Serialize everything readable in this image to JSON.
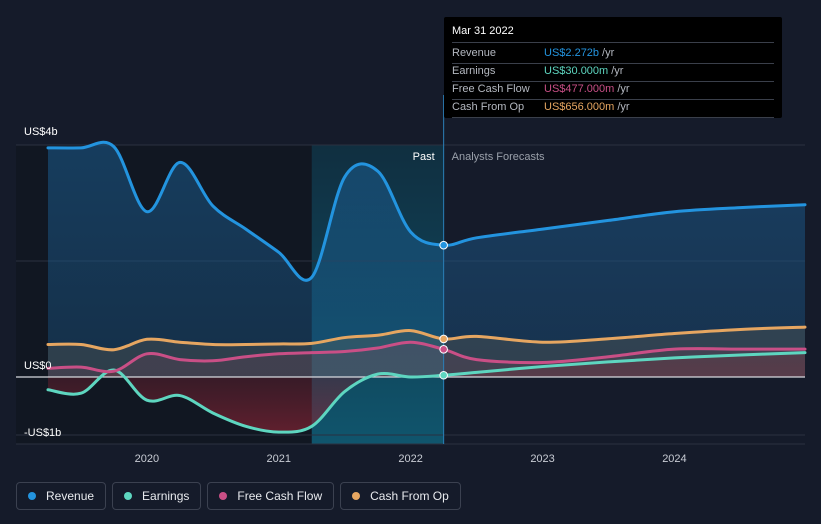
{
  "colors": {
    "revenue": "#2394df",
    "earnings": "#5ed6c0",
    "free_cash_flow": "#c94f86",
    "cash_from_op": "#e6a661",
    "background": "#151b2a"
  },
  "tooltip": {
    "date": "Mar 31 2022",
    "rows": [
      {
        "label": "Revenue",
        "value": "US$2.272b",
        "unit": "/yr",
        "color": "#2394df"
      },
      {
        "label": "Earnings",
        "value": "US$30.000m",
        "unit": "/yr",
        "color": "#5ed6c0"
      },
      {
        "label": "Free Cash Flow",
        "value": "US$477.000m",
        "unit": "/yr",
        "color": "#c94f86"
      },
      {
        "label": "Cash From Op",
        "value": "US$656.000m",
        "unit": "/yr",
        "color": "#e6a661"
      }
    ]
  },
  "legend": [
    {
      "label": "Revenue",
      "color": "#2394df"
    },
    {
      "label": "Earnings",
      "color": "#5ed6c0"
    },
    {
      "label": "Free Cash Flow",
      "color": "#c94f86"
    },
    {
      "label": "Cash From Op",
      "color": "#e6a661"
    }
  ],
  "chart_data": {
    "type": "line",
    "title": "",
    "xlabel": "",
    "ylabel": "",
    "units": "USD billions (annual)",
    "ylim": [
      -1.2,
      4.0
    ],
    "y_tick_labels": [
      {
        "value": 4.0,
        "label": "US$4b"
      },
      {
        "value": 0.0,
        "label": "US$0"
      },
      {
        "value": -1.0,
        "label": "-US$1b"
      }
    ],
    "x_ticks": [
      2020,
      2021,
      2022,
      2023,
      2024
    ],
    "xlim": [
      2019.25,
      2024.99
    ],
    "past_label": "Past",
    "forecast_label": "Analysts Forecasts",
    "past_boundary_x": 2022.25,
    "highlight_start_x": 2021.25,
    "series": [
      {
        "name": "Revenue",
        "key": "revenue",
        "x": [
          2019.25,
          2019.5,
          2019.75,
          2020.0,
          2020.25,
          2020.5,
          2020.75,
          2021.0,
          2021.25,
          2021.5,
          2021.75,
          2022.0,
          2022.25,
          2022.5,
          2023.0,
          2023.5,
          2024.0,
          2024.5,
          2024.99
        ],
        "values": [
          3.95,
          3.95,
          3.97,
          2.85,
          3.7,
          2.95,
          2.55,
          2.15,
          1.72,
          3.45,
          3.55,
          2.5,
          2.272,
          2.4,
          2.55,
          2.7,
          2.85,
          2.92,
          2.97
        ]
      },
      {
        "name": "Earnings",
        "key": "earnings",
        "x": [
          2019.25,
          2019.5,
          2019.75,
          2020.0,
          2020.25,
          2020.5,
          2020.75,
          2021.0,
          2021.25,
          2021.5,
          2021.75,
          2022.0,
          2022.25,
          2022.5,
          2023.0,
          2023.5,
          2024.0,
          2024.5,
          2024.99
        ],
        "values": [
          -0.22,
          -0.28,
          0.12,
          -0.4,
          -0.32,
          -0.62,
          -0.85,
          -0.95,
          -0.85,
          -0.25,
          0.05,
          0.0,
          0.03,
          0.08,
          0.18,
          0.26,
          0.33,
          0.38,
          0.42
        ]
      },
      {
        "name": "Free Cash Flow",
        "key": "free_cash_flow",
        "x": [
          2019.25,
          2019.5,
          2019.75,
          2020.0,
          2020.25,
          2020.5,
          2020.75,
          2021.0,
          2021.25,
          2021.5,
          2021.75,
          2022.0,
          2022.25,
          2022.5,
          2023.0,
          2023.5,
          2024.0,
          2024.5,
          2024.99
        ],
        "values": [
          0.15,
          0.17,
          0.1,
          0.4,
          0.3,
          0.28,
          0.35,
          0.4,
          0.42,
          0.44,
          0.5,
          0.6,
          0.477,
          0.3,
          0.25,
          0.35,
          0.48,
          0.48,
          0.48
        ]
      },
      {
        "name": "Cash From Op",
        "key": "cash_from_op",
        "x": [
          2019.25,
          2019.5,
          2019.75,
          2020.0,
          2020.25,
          2020.5,
          2020.75,
          2021.0,
          2021.25,
          2021.5,
          2021.75,
          2022.0,
          2022.25,
          2022.5,
          2023.0,
          2023.5,
          2024.0,
          2024.5,
          2024.99
        ],
        "values": [
          0.56,
          0.56,
          0.47,
          0.65,
          0.6,
          0.56,
          0.56,
          0.57,
          0.58,
          0.68,
          0.72,
          0.8,
          0.656,
          0.7,
          0.6,
          0.66,
          0.75,
          0.82,
          0.86
        ]
      }
    ],
    "highlight_points": [
      {
        "series": "revenue",
        "x": 2022.25,
        "value": 2.272
      },
      {
        "series": "earnings",
        "x": 2022.25,
        "value": 0.03
      },
      {
        "series": "free_cash_flow",
        "x": 2022.25,
        "value": 0.477
      },
      {
        "series": "cash_from_op",
        "x": 2022.25,
        "value": 0.656
      }
    ]
  }
}
